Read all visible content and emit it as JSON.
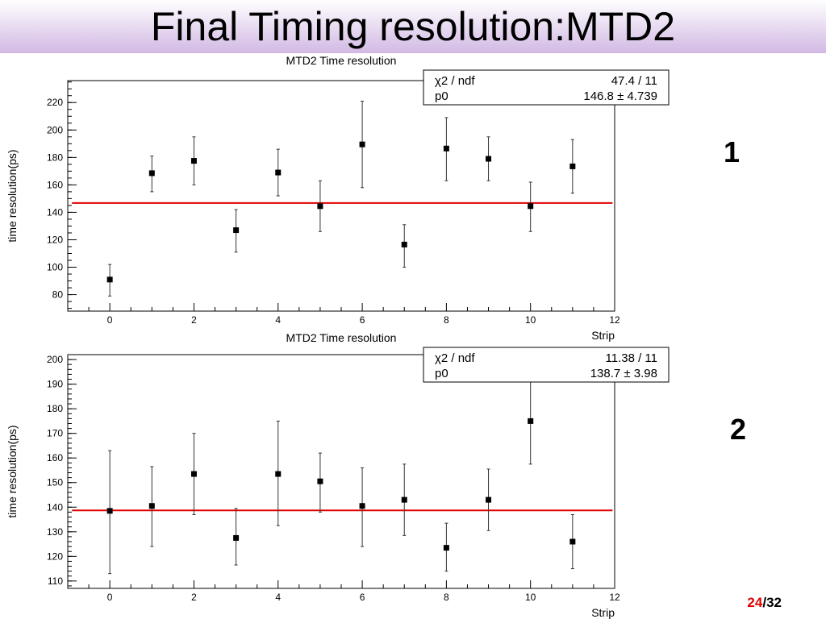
{
  "slide": {
    "title": "Final Timing resolution:MTD2",
    "labels": [
      "1",
      "2"
    ],
    "page_current": "24",
    "page_sep": "/",
    "page_total": "32"
  },
  "colors": {
    "fit_line": "#e00000",
    "markers": "#000000",
    "page_current": "#e00000"
  },
  "chart_data": [
    {
      "type": "scatter",
      "title": "MTD2 Time resolution",
      "xlabel": "Strip",
      "ylabel": "time resolution(ps)",
      "xlim": [
        -1,
        12
      ],
      "ylim": [
        68,
        236
      ],
      "xticks": [
        0,
        2,
        4,
        6,
        8,
        10,
        12
      ],
      "yticks": [
        80,
        100,
        120,
        140,
        160,
        180,
        200,
        220
      ],
      "x": [
        0,
        1,
        2,
        3,
        4,
        5,
        6,
        7,
        8,
        9,
        10,
        11
      ],
      "y": [
        91,
        168.5,
        177.5,
        127,
        169,
        144.5,
        189.5,
        116.5,
        186.5,
        179,
        144.5,
        173.5
      ],
      "err_low": [
        79,
        155,
        160,
        111,
        152,
        126,
        158,
        100,
        163,
        163,
        126,
        154
      ],
      "err_high": [
        102,
        181,
        195,
        142,
        186,
        163,
        221,
        131,
        209,
        195,
        162,
        193
      ],
      "fit": {
        "value": 146.8,
        "x_range": [
          -0.9,
          11.95
        ]
      },
      "stats": {
        "row1_name": "χ2 / ndf",
        "row1_value": "47.4 / 11",
        "row2_name": "p0",
        "row2_value": "146.8 ± 4.739"
      },
      "grid": false
    },
    {
      "type": "scatter",
      "title": "MTD2 Time resolution",
      "xlabel": "Strip",
      "ylabel": "time resolution(ps)",
      "xlim": [
        -1,
        12
      ],
      "ylim": [
        107,
        202
      ],
      "xticks": [
        0,
        2,
        4,
        6,
        8,
        10,
        12
      ],
      "yticks": [
        110,
        120,
        130,
        140,
        150,
        160,
        170,
        180,
        190,
        200
      ],
      "x": [
        0,
        1,
        2,
        3,
        4,
        5,
        6,
        7,
        8,
        9,
        10,
        11
      ],
      "y": [
        138.5,
        140.5,
        153.5,
        127.5,
        153.5,
        150.5,
        140.5,
        143,
        123.5,
        143,
        175,
        126
      ],
      "err_low": [
        113,
        124,
        137,
        116.5,
        132.5,
        138,
        124,
        128.5,
        114,
        130.5,
        157.5,
        115
      ],
      "err_high": [
        163,
        156.5,
        170,
        139.5,
        175,
        162,
        156,
        157.5,
        133.5,
        155.5,
        192.5,
        137
      ],
      "fit": {
        "value": 138.7,
        "x_range": [
          -0.9,
          11.95
        ]
      },
      "stats": {
        "row1_name": "χ2 / ndf",
        "row1_value": "11.38 / 11",
        "row2_name": "p0",
        "row2_value": "138.7 ±  3.98"
      },
      "grid": false
    }
  ]
}
